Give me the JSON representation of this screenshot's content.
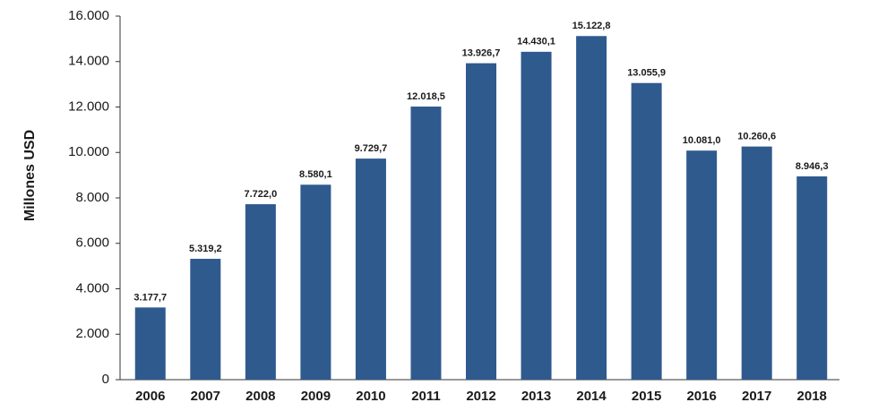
{
  "chart_data": {
    "type": "bar",
    "y_axis_label": "Millones  USD",
    "categories": [
      "2006",
      "2007",
      "2008",
      "2009",
      "2010",
      "2011",
      "2012",
      "2013",
      "2014",
      "2015",
      "2016",
      "2017",
      "2018"
    ],
    "values": [
      3177.7,
      5319.2,
      7722.0,
      8580.1,
      9729.7,
      12018.5,
      13926.7,
      14430.1,
      15122.8,
      13055.9,
      10081.0,
      10260.6,
      8946.3
    ],
    "value_labels": [
      "3.177,7",
      "5.319,2",
      "7.722,0",
      "8.580,1",
      "9.729,7",
      "12.018,5",
      "13.926,7",
      "14.430,1",
      "15.122,8",
      "13.055,9",
      "10.081,0",
      "10.260,6",
      "8.946,3"
    ],
    "color": "#2f5a8e",
    "ylim": [
      0,
      16000
    ],
    "yticks": [
      0,
      {
        "value": 2000,
        "label": "2.000"
      },
      {
        "value": 4000,
        "label": "4.000"
      },
      {
        "value": 6000,
        "label": "6.000"
      },
      {
        "value": 8000,
        "label": "8.000"
      },
      {
        "value": 10000,
        "label": "10.000"
      },
      {
        "value": 12000,
        "label": "12.000"
      },
      {
        "value": 14000,
        "label": "14.000"
      },
      {
        "value": 16000,
        "label": "16.000"
      }
    ],
    "grid": false
  }
}
